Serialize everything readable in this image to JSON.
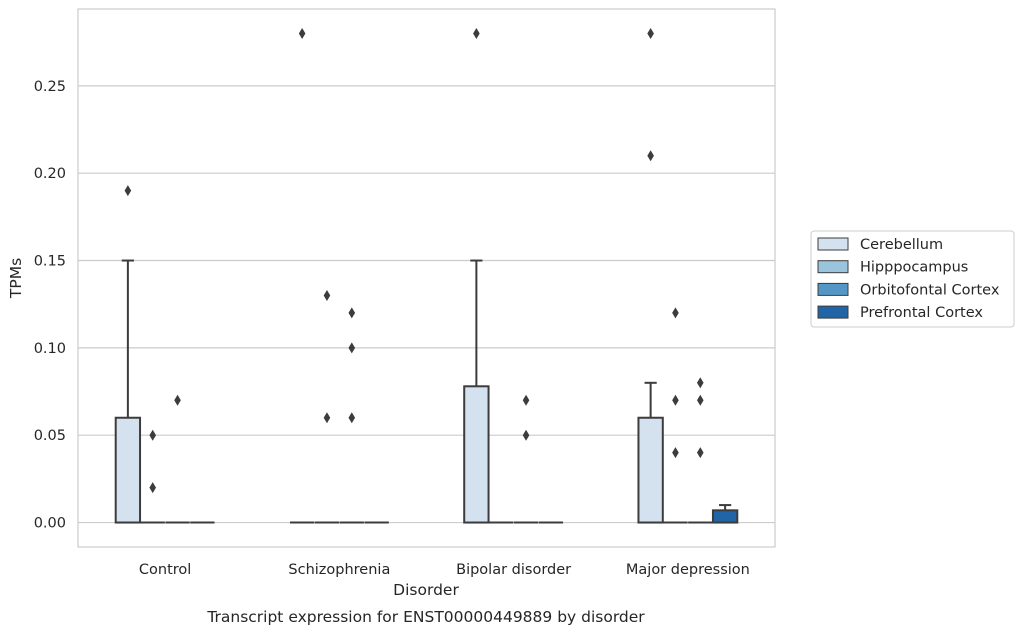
{
  "chart_data": {
    "type": "boxplot",
    "title": "Transcript expression for ENST00000449889 by disorder",
    "xlabel": "Disorder",
    "ylabel": "TPMs",
    "ylim": [
      -0.014,
      0.294
    ],
    "yticks": [
      "0.00",
      "0.05",
      "0.10",
      "0.15",
      "0.20",
      "0.25"
    ],
    "ytick_values": [
      0,
      0.05,
      0.1,
      0.15,
      0.2,
      0.25
    ],
    "grid": "horizontal",
    "legend_position": "right",
    "categories": [
      "Control",
      "Schizophrenia",
      "Bipolar disorder",
      "Major depression"
    ],
    "series": [
      {
        "name": "Cerebellum",
        "color": "#d4e2f0",
        "boxes": [
          {
            "q1": 0,
            "median": 0,
            "q3": 0.06,
            "whisker_low": 0,
            "whisker_high": 0.15,
            "outliers": [
              0.19
            ]
          },
          {
            "q1": 0,
            "median": 0,
            "q3": 0,
            "whisker_low": 0,
            "whisker_high": 0,
            "outliers": [
              0.28
            ]
          },
          {
            "q1": 0,
            "median": 0,
            "q3": 0.078,
            "whisker_low": 0,
            "whisker_high": 0.15,
            "outliers": [
              0.28
            ]
          },
          {
            "q1": 0,
            "median": 0,
            "q3": 0.06,
            "whisker_low": 0,
            "whisker_high": 0.08,
            "outliers": [
              0.21,
              0.28
            ]
          }
        ]
      },
      {
        "name": "Hipppocampus",
        "color": "#9ac3dc",
        "boxes": [
          {
            "q1": 0,
            "median": 0,
            "q3": 0,
            "whisker_low": 0,
            "whisker_high": 0,
            "outliers": [
              0.02,
              0.05
            ]
          },
          {
            "q1": 0,
            "median": 0,
            "q3": 0,
            "whisker_low": 0,
            "whisker_high": 0,
            "outliers": [
              0.06,
              0.13
            ]
          },
          {
            "q1": 0,
            "median": 0,
            "q3": 0,
            "whisker_low": 0,
            "whisker_high": 0,
            "outliers": []
          },
          {
            "q1": 0,
            "median": 0,
            "q3": 0,
            "whisker_low": 0,
            "whisker_high": 0,
            "outliers": [
              0.04,
              0.07,
              0.12
            ]
          }
        ]
      },
      {
        "name": "Orbitofontal Cortex",
        "color": "#5497c6",
        "boxes": [
          {
            "q1": 0,
            "median": 0,
            "q3": 0,
            "whisker_low": 0,
            "whisker_high": 0,
            "outliers": [
              0.07
            ]
          },
          {
            "q1": 0,
            "median": 0,
            "q3": 0,
            "whisker_low": 0,
            "whisker_high": 0,
            "outliers": [
              0.06,
              0.1,
              0.12
            ]
          },
          {
            "q1": 0,
            "median": 0,
            "q3": 0,
            "whisker_low": 0,
            "whisker_high": 0,
            "outliers": [
              0.05,
              0.07
            ]
          },
          {
            "q1": 0,
            "median": 0,
            "q3": 0,
            "whisker_low": 0,
            "whisker_high": 0,
            "outliers": [
              0.04,
              0.07,
              0.08
            ]
          }
        ]
      },
      {
        "name": "Prefrontal Cortex",
        "color": "#2165a6",
        "boxes": [
          {
            "q1": 0,
            "median": 0,
            "q3": 0,
            "whisker_low": 0,
            "whisker_high": 0,
            "outliers": []
          },
          {
            "q1": 0,
            "median": 0,
            "q3": 0,
            "whisker_low": 0,
            "whisker_high": 0,
            "outliers": []
          },
          {
            "q1": 0,
            "median": 0,
            "q3": 0,
            "whisker_low": 0,
            "whisker_high": 0,
            "outliers": []
          },
          {
            "q1": 0,
            "median": 0,
            "q3": 0.007,
            "whisker_low": 0,
            "whisker_high": 0.01,
            "outliers": []
          }
        ]
      }
    ]
  }
}
